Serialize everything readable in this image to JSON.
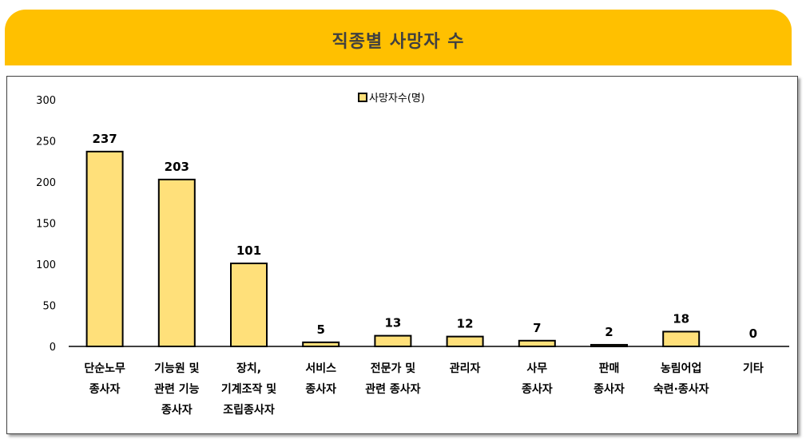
{
  "chart_data": {
    "type": "bar",
    "title": "직종별 사망자 수",
    "categories": [
      [
        "단순노무",
        "종사자"
      ],
      [
        "기능원 및",
        "관련 기능",
        "종사자"
      ],
      [
        "장치,",
        "기계조작 및",
        "조립종사자"
      ],
      [
        "서비스",
        "종사자"
      ],
      [
        "전문가 및",
        "관련 종사자"
      ],
      [
        "관리자"
      ],
      [
        "사무",
        "종사자"
      ],
      [
        "판매",
        "종사자"
      ],
      [
        "농림어업",
        "숙련·종사자"
      ],
      [
        "기타"
      ]
    ],
    "series": [
      {
        "name": "사망자수(명)",
        "values": [
          237,
          203,
          101,
          5,
          13,
          12,
          7,
          2,
          18,
          0
        ]
      }
    ],
    "y_ticks": [
      "0",
      "50",
      "100",
      "150",
      "200",
      "250",
      "300"
    ],
    "ylim": [
      0,
      300
    ],
    "legend_position": "top-center",
    "bar_color": "#FFE07A",
    "bar_edge_color": "#000000",
    "banner_color": "#FFC000"
  }
}
